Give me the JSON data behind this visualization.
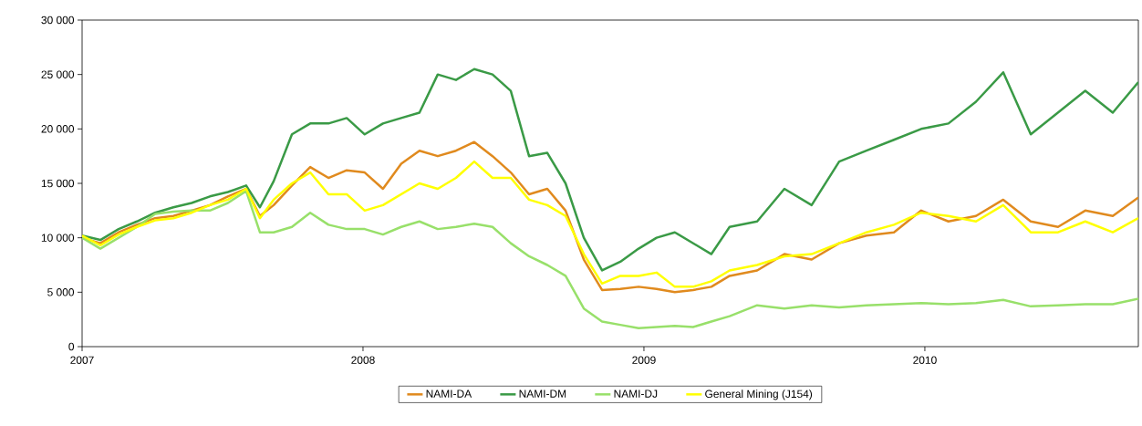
{
  "chart_data": {
    "type": "line",
    "x": [
      2007.0,
      2007.065,
      2007.13,
      2007.195,
      2007.26,
      2007.325,
      2007.39,
      2007.455,
      2007.519,
      2007.584,
      2007.633,
      2007.682,
      2007.747,
      2007.812,
      2007.877,
      2007.942,
      2008.006,
      2008.071,
      2008.136,
      2008.201,
      2008.266,
      2008.331,
      2008.396,
      2008.461,
      2008.526,
      2008.591,
      2008.656,
      2008.721,
      2008.786,
      2008.851,
      2008.916,
      2008.981,
      2009.045,
      2009.11,
      2009.175,
      2009.24,
      2009.305,
      2009.403,
      2009.5,
      2009.597,
      2009.695,
      2009.792,
      2009.89,
      2009.987,
      2010.084,
      2010.182,
      2010.279,
      2010.377,
      2010.474,
      2010.571,
      2010.669,
      2010.76
    ],
    "series": [
      {
        "name": "NAMI-DA",
        "color": "#e08a1e",
        "values": [
          10000,
          9500,
          10500,
          11200,
          11800,
          12000,
          12500,
          13000,
          13800,
          14500,
          12000,
          13000,
          14800,
          16500,
          15500,
          16200,
          16000,
          14500,
          16800,
          18000,
          17500,
          18000,
          18800,
          17500,
          16000,
          14000,
          14500,
          12500,
          8000,
          5200,
          5300,
          5500,
          5300,
          5000,
          5200,
          5500,
          6500,
          7000,
          8500,
          8000,
          9500,
          10200,
          10500,
          12500,
          11500,
          12000,
          13500,
          11500,
          11000,
          12500,
          12000,
          13700
        ]
      },
      {
        "name": "NAMI-DM",
        "color": "#3a9a46",
        "values": [
          10200,
          9800,
          10800,
          11500,
          12300,
          12800,
          13200,
          13800,
          14200,
          14800,
          12800,
          15200,
          19500,
          20500,
          20500,
          21000,
          19500,
          20500,
          21000,
          21500,
          25000,
          24500,
          25500,
          25000,
          23500,
          17500,
          17800,
          15000,
          10000,
          7000,
          7800,
          9000,
          10000,
          10500,
          9500,
          8500,
          11000,
          11500,
          14500,
          13000,
          17000,
          18000,
          19000,
          20000,
          20500,
          22500,
          25200,
          19500,
          21500,
          23500,
          21500,
          24300
        ]
      },
      {
        "name": "NAMI-DJ",
        "color": "#98e06a",
        "values": [
          10000,
          9000,
          10000,
          11000,
          12200,
          12400,
          12500,
          12500,
          13200,
          14300,
          10500,
          10500,
          11000,
          12300,
          11200,
          10800,
          10800,
          10300,
          11000,
          11500,
          10800,
          11000,
          11300,
          11000,
          9500,
          8300,
          7500,
          6500,
          3500,
          2300,
          2000,
          1700,
          1800,
          1900,
          1800,
          2300,
          2800,
          3800,
          3500,
          3800,
          3600,
          3800,
          3900,
          4000,
          3900,
          4000,
          4300,
          3700,
          3800,
          3900,
          3900,
          4400
        ]
      },
      {
        "name": "General Mining (J154)",
        "color": "#ffff00",
        "values": [
          10200,
          9300,
          10300,
          11000,
          11600,
          11800,
          12300,
          13000,
          13500,
          14500,
          11800,
          13500,
          15000,
          16000,
          14000,
          14000,
          12500,
          13000,
          14000,
          15000,
          14500,
          15500,
          17000,
          15500,
          15500,
          13500,
          13000,
          12000,
          8500,
          5800,
          6500,
          6500,
          6800,
          5500,
          5500,
          6000,
          7000,
          7500,
          8300,
          8500,
          9500,
          10500,
          11200,
          12300,
          12000,
          11500,
          13000,
          10500,
          10500,
          11500,
          10500,
          11800
        ]
      }
    ],
    "xlim": [
      2007.0,
      2010.76
    ],
    "xticks": [
      2007,
      2008,
      2009,
      2010
    ],
    "ylim": [
      0,
      30000
    ],
    "yticks": [
      0,
      {
        "value": 5000,
        "label": "5 000"
      },
      {
        "value": 10000,
        "label": "10 000"
      },
      {
        "value": 15000,
        "label": "15 000"
      },
      {
        "value": 20000,
        "label": "20 000"
      },
      {
        "value": 25000,
        "label": "25 000"
      },
      {
        "value": 30000,
        "label": "30 000"
      }
    ],
    "legend": "bottom",
    "grid": false,
    "marker": "none",
    "line_style": "solid"
  }
}
